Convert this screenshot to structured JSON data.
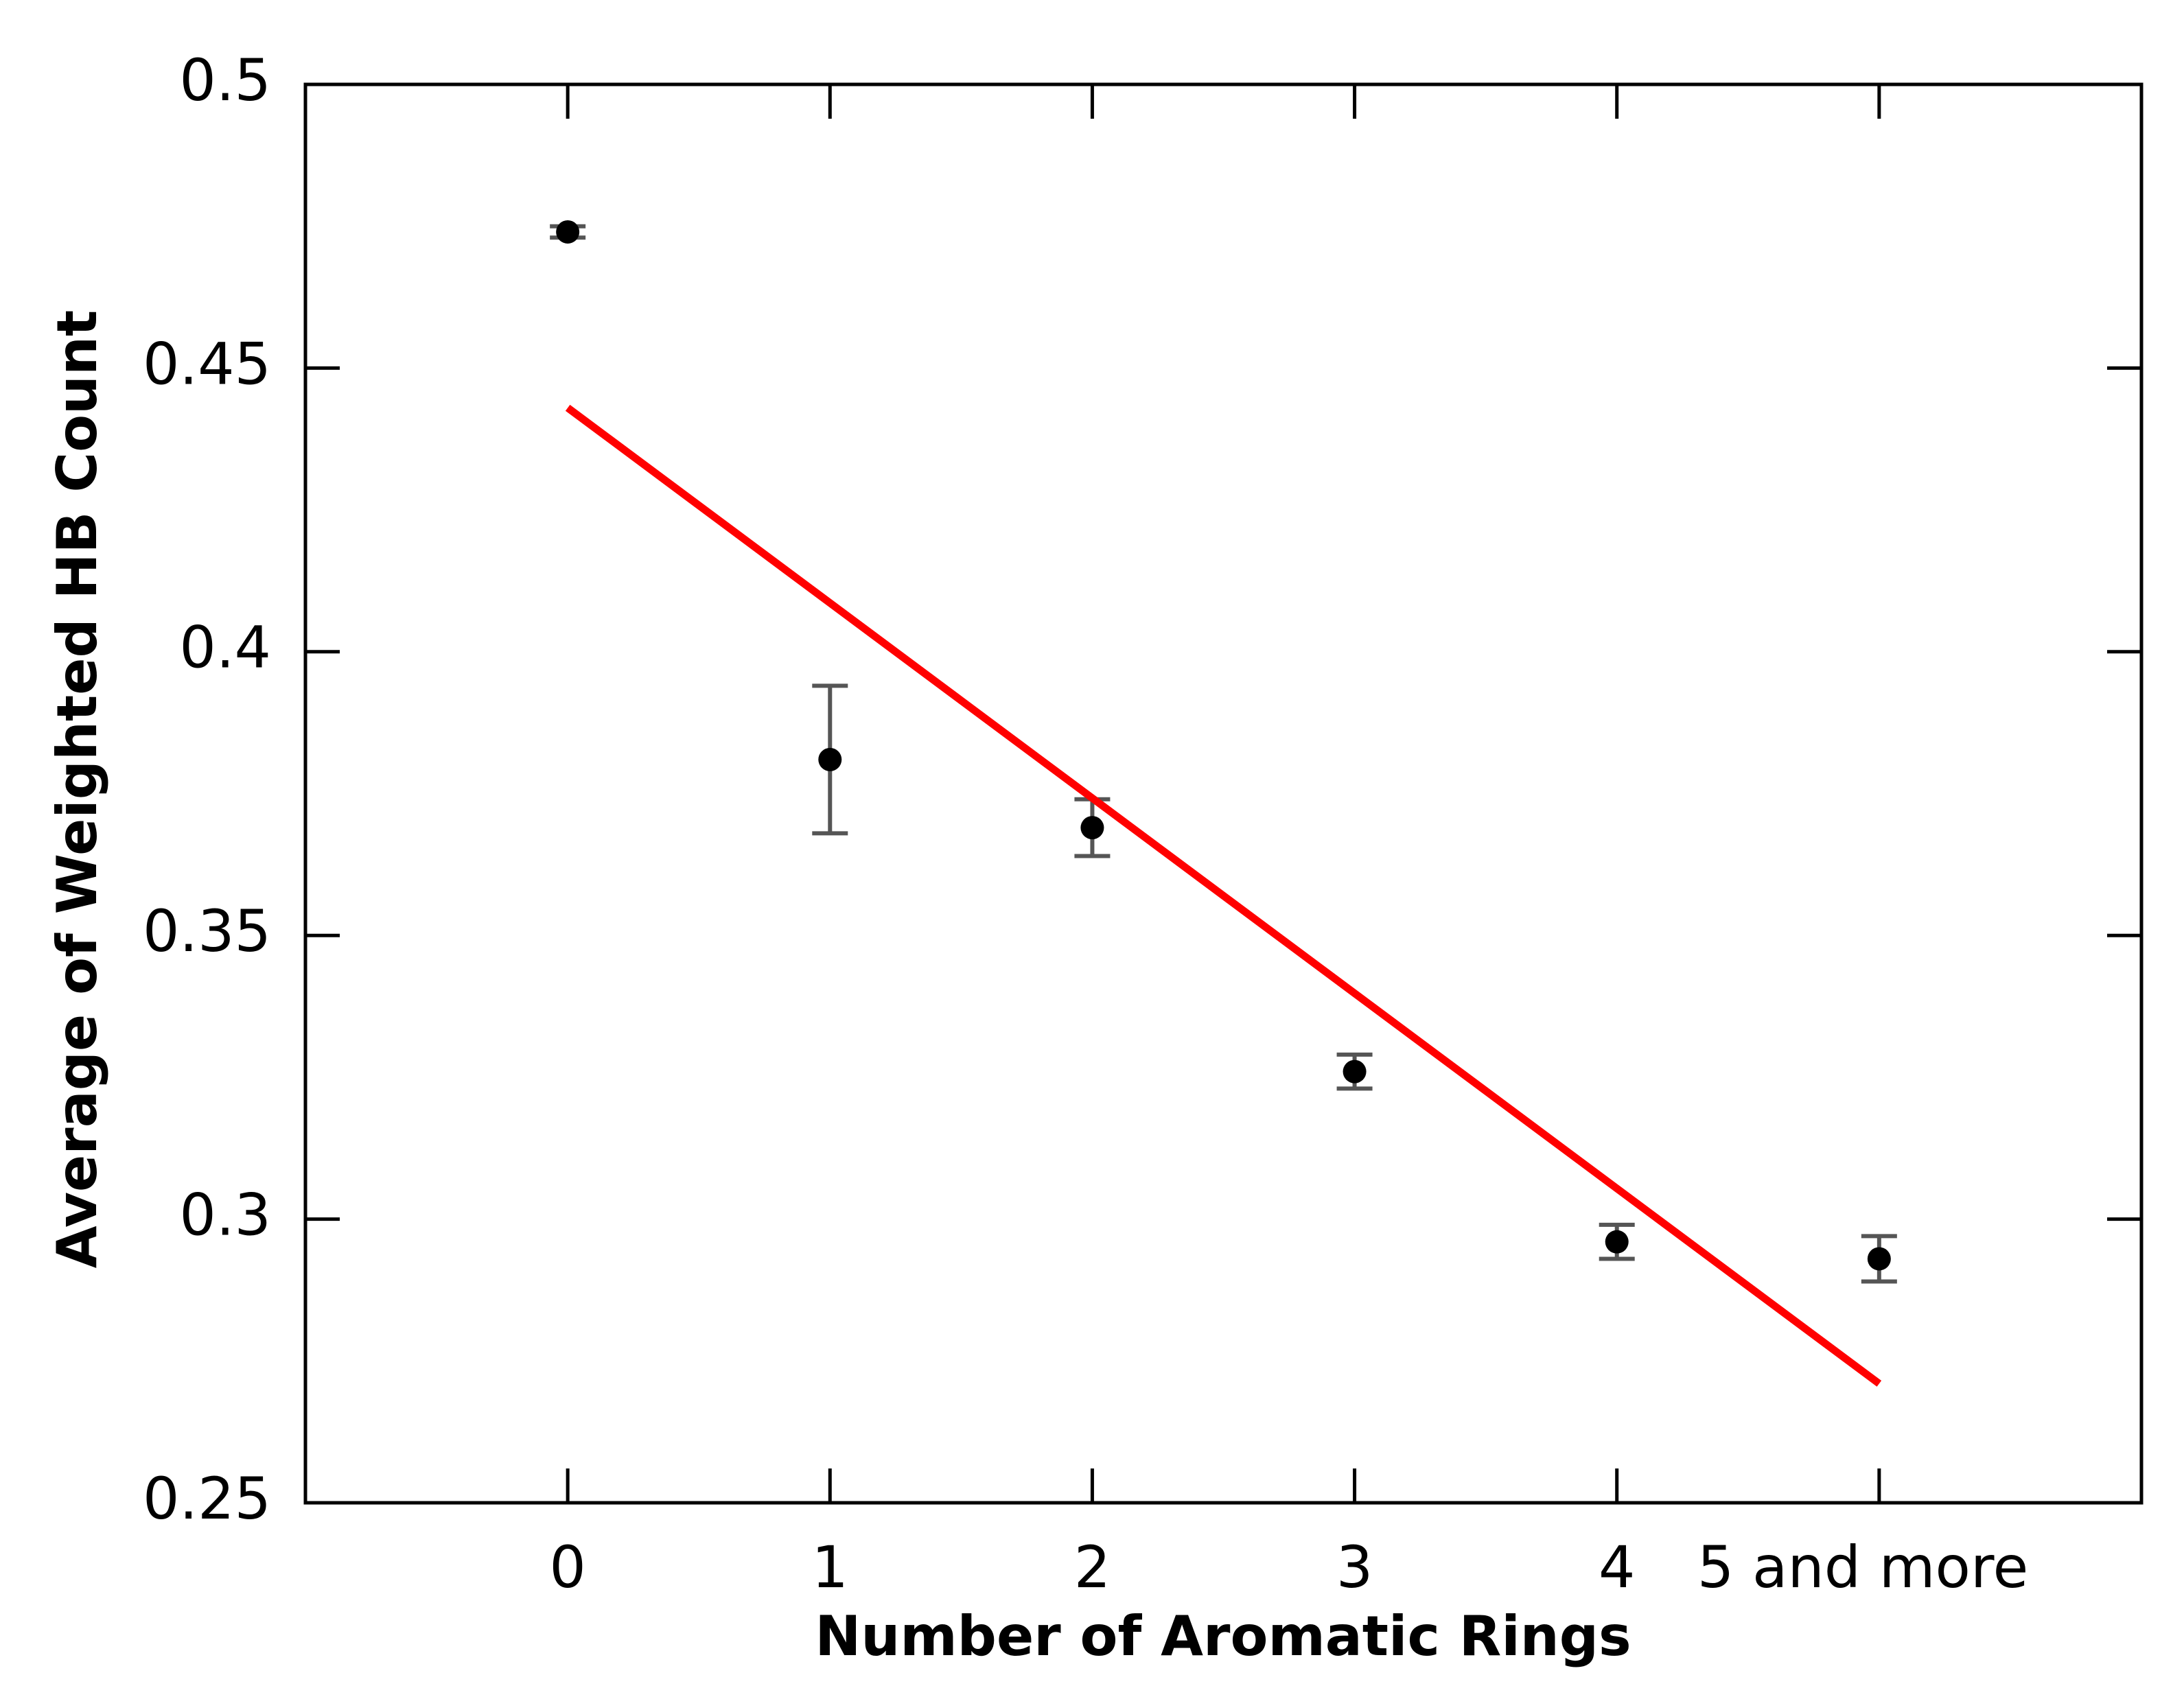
{
  "chart_data": {
    "type": "scatter",
    "x_label": "Number of Aromatic Rings",
    "y_label": "Average of Weighted HB Count",
    "categories": [
      "0",
      "1",
      "2",
      "3",
      "4",
      "5 and more"
    ],
    "series": [
      {
        "color": "#000000",
        "error_color": "#555555",
        "values": [
          0.474,
          0.381,
          0.369,
          0.326,
          0.296,
          0.293
        ],
        "errors": [
          0.001,
          0.013,
          0.005,
          0.003,
          0.003,
          0.004
        ]
      }
    ],
    "trend": {
      "color": "#ff0000",
      "values": [
        0.443,
        0.271
      ]
    },
    "ylim": [
      0.25,
      0.5
    ],
    "yticks": [
      0.25,
      0.3,
      0.35,
      0.4,
      0.45,
      0.5
    ]
  }
}
